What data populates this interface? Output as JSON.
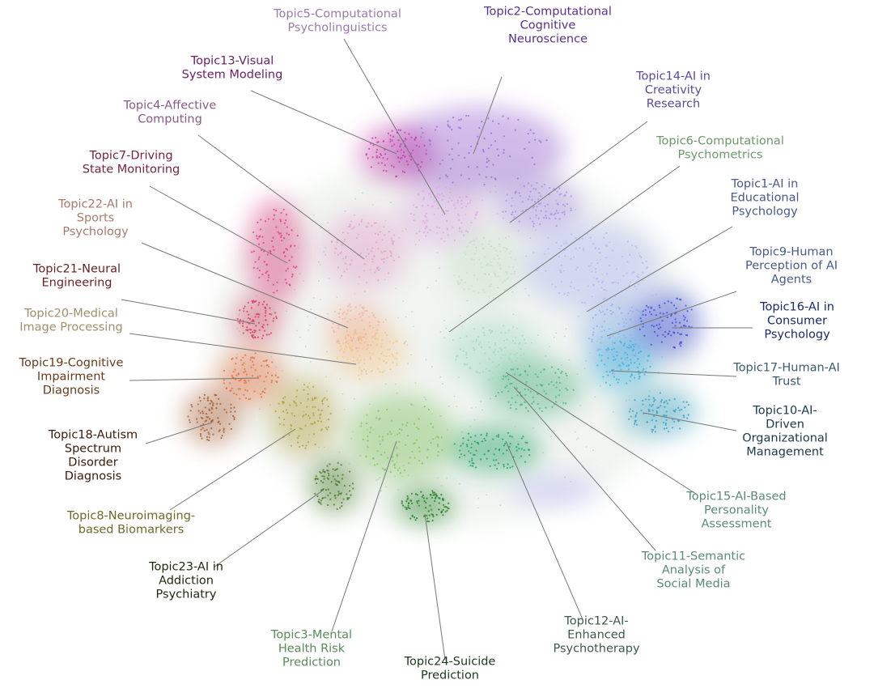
{
  "topics": [
    {
      "lines": [
        "Topic5-Computational",
        "Psycholinguistics"
      ],
      "color": "#9a7bb0"
    },
    {
      "lines": [
        "Topic2-Computational",
        "Cognitive",
        "Neuroscience"
      ],
      "color": "#5b2f8e"
    },
    {
      "lines": [
        "Topic13-Visual",
        "System Modeling"
      ],
      "color": "#6b1f66"
    },
    {
      "lines": [
        "Topic14-AI in",
        "Creativity",
        "Research"
      ],
      "color": "#5a4a9a"
    },
    {
      "lines": [
        "Topic4-Affective",
        "Computing"
      ],
      "color": "#8a5a8a"
    },
    {
      "lines": [
        "Topic6-Computational",
        "Psychometrics"
      ],
      "color": "#6a9a6a"
    },
    {
      "lines": [
        "Topic7-Driving",
        "State Monitoring"
      ],
      "color": "#7a1f3f"
    },
    {
      "lines": [
        "Topic1-AI in",
        "Educational",
        "Psychology"
      ],
      "color": "#4a5a8a"
    },
    {
      "lines": [
        "Topic22-AI in",
        "Sports",
        "Psychology"
      ],
      "color": "#a87a6a"
    },
    {
      "lines": [
        "Topic9-Human",
        "Perception of AI",
        "Agents"
      ],
      "color": "#4a5a8a"
    },
    {
      "lines": [
        "Topic21-Neural",
        "Engineering"
      ],
      "color": "#6a1f1f"
    },
    {
      "lines": [
        "Topic16-AI in",
        "Consumer",
        "Psychology"
      ],
      "color": "#1a2a6a"
    },
    {
      "lines": [
        "Topic20-Medical",
        "Image Processing"
      ],
      "color": "#a0906a"
    },
    {
      "lines": [
        "Topic19-Cognitive",
        "Impairment",
        "Diagnosis"
      ],
      "color": "#6a3a1a"
    },
    {
      "lines": [
        "Topic17-Human-AI",
        "Trust"
      ],
      "color": "#3a5a6a"
    },
    {
      "lines": [
        "Topic10-AI-",
        "Driven",
        "Organizational",
        "Management"
      ],
      "color": "#1a3a4a"
    },
    {
      "lines": [
        "Topic18-Autism",
        "Spectrum",
        "Disorder",
        "Diagnosis"
      ],
      "color": "#3a1a0a"
    },
    {
      "lines": [
        "Topic15-AI-Based",
        "Personality",
        "Assessment"
      ],
      "color": "#5a8a7a"
    },
    {
      "lines": [
        "Topic8-Neuroimaging-",
        "based Biomarkers"
      ],
      "color": "#6a6a2a"
    },
    {
      "lines": [
        "Topic11-Semantic",
        "Analysis of",
        "Social Media"
      ],
      "color": "#5a8a7a"
    },
    {
      "lines": [
        "Topic23-AI in",
        "Addiction",
        "Psychiatry"
      ],
      "color": "#1a2a0a"
    },
    {
      "lines": [
        "Topic12-AI-",
        "Enhanced",
        "Psychotherapy"
      ],
      "color": "#3a5a4a"
    },
    {
      "lines": [
        "Topic3-Mental",
        "Health Risk",
        "Prediction"
      ],
      "color": "#5a8a5a"
    },
    {
      "lines": [
        "Topic24-Suicide",
        "Prediction"
      ],
      "color": "#1a3a1a"
    }
  ]
}
